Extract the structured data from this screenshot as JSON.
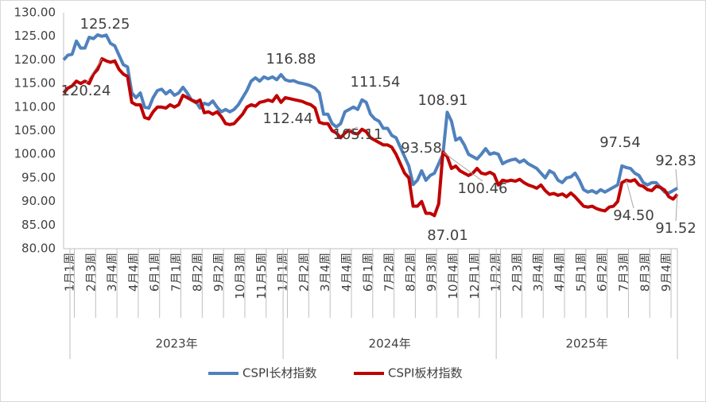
{
  "chart_data": {
    "type": "line",
    "categories": [
      "1月1周",
      null,
      null,
      null,
      null,
      "2月3周",
      null,
      null,
      null,
      null,
      "3月4周",
      null,
      null,
      null,
      null,
      "4月4周",
      null,
      null,
      null,
      null,
      "6月1周",
      null,
      null,
      null,
      null,
      "7月1周",
      null,
      null,
      null,
      null,
      "8月2周",
      null,
      null,
      null,
      null,
      "9月2周",
      null,
      null,
      null,
      null,
      "10月3周",
      null,
      null,
      null,
      null,
      "11月5周",
      null,
      null,
      null,
      null,
      "1月1周",
      null,
      null,
      null,
      null,
      "2月2周",
      null,
      null,
      null,
      null,
      "3月4周",
      null,
      null,
      null,
      null,
      "4月4周",
      null,
      null,
      null,
      null,
      "6月1周",
      null,
      null,
      null,
      null,
      "7月2周",
      null,
      null,
      null,
      null,
      "8月2周",
      null,
      null,
      null,
      null,
      "9月3周",
      null,
      null,
      null,
      null,
      "10月4周",
      null,
      null,
      null,
      null,
      "12月1周",
      null,
      null,
      null,
      null,
      "1月2周",
      null,
      null,
      null,
      null,
      "2月3周",
      null,
      null,
      null,
      null,
      "3月4周",
      null,
      null,
      null,
      null,
      "4月4周",
      null,
      null,
      null,
      null,
      "5月1周",
      null,
      null,
      null,
      null,
      "6月2周",
      null,
      null,
      null,
      null,
      "7月3周",
      null,
      null,
      null,
      null,
      "8月3周",
      null,
      null,
      null,
      null,
      "9月4周",
      null,
      null,
      null,
      null
    ],
    "year_groups": [
      {
        "label": "2023年",
        "count": 52
      },
      {
        "label": "2024年",
        "count": 50
      },
      {
        "label": "2025年",
        "count": 43
      }
    ],
    "series": [
      {
        "name": "CSPI长材指数",
        "color": "#4f81bd",
        "values": [
          120,
          121,
          121.2,
          124,
          122.5,
          122.5,
          124.8,
          124.5,
          125.3,
          125,
          125.25,
          123.5,
          123,
          121,
          119,
          118.5,
          113,
          112,
          113,
          110,
          109.8,
          112,
          113.5,
          113.8,
          112.8,
          113.5,
          112.5,
          113,
          114.2,
          113,
          111.5,
          111.2,
          109.8,
          110.8,
          110.5,
          111.3,
          110,
          109,
          109.5,
          109,
          109.5,
          110.5,
          112,
          113.5,
          115.5,
          116.2,
          115.5,
          116.4,
          116,
          116.4,
          115.8,
          116.88,
          115.8,
          115.5,
          115.6,
          115.2,
          115,
          114.8,
          114.5,
          114,
          113,
          108.5,
          108.5,
          106.5,
          105.8,
          106.5,
          109,
          109.5,
          110,
          109.5,
          111.54,
          111,
          108.5,
          107.5,
          107,
          105.5,
          105.5,
          104,
          103.5,
          101.5,
          99.5,
          97.5,
          93.58,
          94.5,
          96.5,
          94.5,
          95.5,
          96,
          98,
          100,
          108.91,
          107,
          103,
          103.5,
          102,
          100,
          99.5,
          99,
          100,
          101.2,
          100,
          100.3,
          100,
          98,
          98.5,
          98.8,
          99,
          98.3,
          98.8,
          98,
          97.5,
          97,
          96,
          95,
          96.5,
          96,
          94.5,
          94,
          95,
          95.2,
          96,
          94.5,
          92.5,
          92,
          92.3,
          91.8,
          92.5,
          92,
          92.5,
          93,
          93.5,
          97.54,
          97.2,
          97,
          96,
          95.5,
          94,
          93.5,
          94,
          94,
          93,
          92,
          91.8,
          92.3,
          92.83
        ]
      },
      {
        "name": "CSPI板材指数",
        "color": "#c00000",
        "values": [
          113,
          114,
          114.5,
          115.5,
          115,
          115.5,
          115,
          117,
          118,
          120.24,
          119.8,
          119.5,
          119.8,
          118,
          117,
          116.5,
          111,
          110.5,
          110.5,
          107.8,
          107.5,
          109,
          110,
          110,
          109.8,
          110.5,
          110,
          110.5,
          112.5,
          112,
          111.5,
          111,
          111.5,
          108.8,
          109,
          108.5,
          109,
          108,
          106.5,
          106.3,
          106.5,
          107.5,
          108.5,
          110,
          110.5,
          110.2,
          111,
          111.2,
          111.5,
          111.2,
          112.44,
          111,
          112,
          111.8,
          111.6,
          111.4,
          111.2,
          110.8,
          110.5,
          109.8,
          106.8,
          106.5,
          106.5,
          105,
          104.5,
          103.5,
          104.5,
          105.11,
          104.5,
          104.3,
          105.3,
          104.8,
          103.5,
          103,
          102.5,
          102,
          102,
          101.5,
          100,
          98,
          96,
          95,
          89,
          89,
          90,
          87.5,
          87.5,
          87.01,
          89.5,
          100.46,
          99.5,
          97,
          97.5,
          96.5,
          96,
          95.5,
          96,
          97,
          96,
          95.8,
          96.2,
          95.7,
          93.5,
          94.5,
          94.3,
          94.5,
          94.3,
          94.7,
          94,
          93.5,
          93.2,
          92.8,
          93.5,
          92.3,
          91.5,
          91.7,
          91.3,
          91.6,
          91,
          91.8,
          91,
          90,
          89,
          88.8,
          89,
          88.5,
          88.2,
          88,
          88.8,
          89,
          90,
          94,
          94.5,
          94.3,
          94.6,
          93.5,
          93.2,
          92.5,
          92.3,
          93.2,
          93,
          92.4,
          91,
          90.5,
          91.52
        ]
      }
    ],
    "data_labels": [
      {
        "series": 0,
        "index": 10,
        "label": "125.25"
      },
      {
        "series": 1,
        "index": 9,
        "label": "120.24"
      },
      {
        "series": 0,
        "index": 51,
        "label": "116.88"
      },
      {
        "series": 1,
        "index": 50,
        "label": "112.44"
      },
      {
        "series": 0,
        "index": 70,
        "label": "111.54"
      },
      {
        "series": 1,
        "index": 67,
        "label": "105.11"
      },
      {
        "series": 0,
        "index": 82,
        "label": "93.58"
      },
      {
        "series": 1,
        "index": 87,
        "label": "87.01"
      },
      {
        "series": 0,
        "index": 90,
        "label": "108.91"
      },
      {
        "series": 1,
        "index": 89,
        "label": "100.46"
      },
      {
        "series": 0,
        "index": 131,
        "label": "97.54"
      },
      {
        "series": 1,
        "index": 132,
        "label": "94.50"
      },
      {
        "series": 0,
        "index": 144,
        "label": "92.83"
      },
      {
        "series": 1,
        "index": 144,
        "label": "91.52"
      }
    ],
    "ylim": [
      80,
      130
    ],
    "yticks": [
      {
        "value": 80,
        "label": "80.00"
      },
      {
        "value": 85,
        "label": "85.00"
      },
      {
        "value": 90,
        "label": "90.00"
      },
      {
        "value": 95,
        "label": "95.00"
      },
      {
        "value": 100,
        "label": "100.00"
      },
      {
        "value": 105,
        "label": "105.00"
      },
      {
        "value": 110,
        "label": "110.00"
      },
      {
        "value": 115,
        "label": "115.00"
      },
      {
        "value": 120,
        "label": "120.00"
      },
      {
        "value": 125,
        "label": "125.00"
      },
      {
        "value": 130,
        "label": "130.00"
      }
    ],
    "grid": false,
    "legend": "bottom"
  }
}
